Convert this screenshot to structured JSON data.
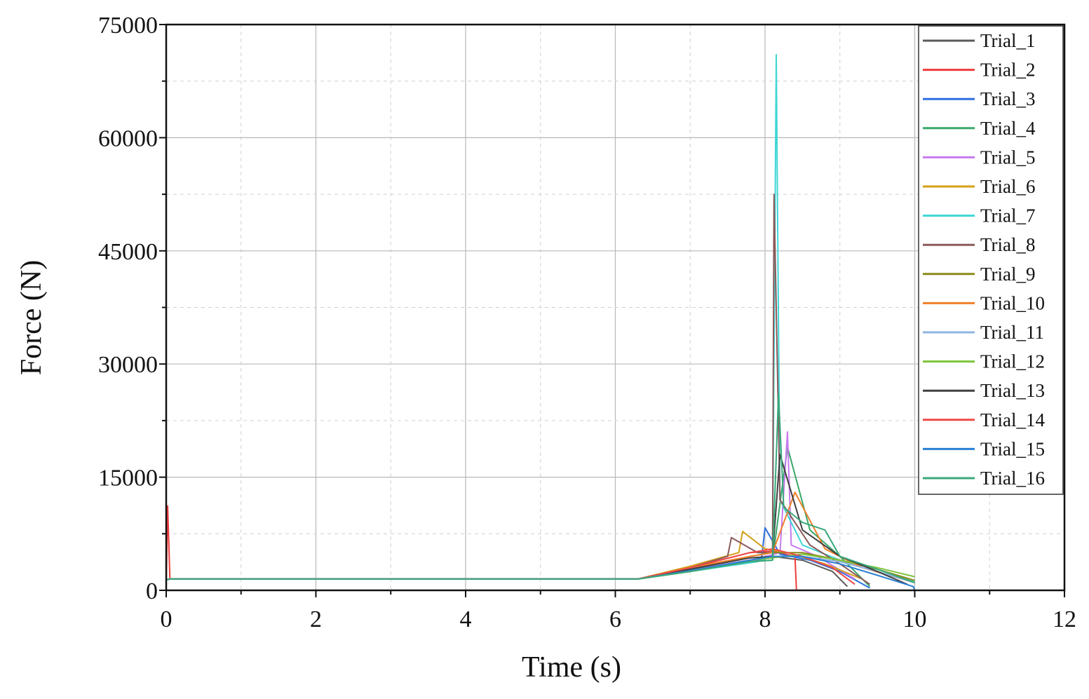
{
  "chart_data": {
    "type": "line",
    "title": "",
    "xlabel": "Time (s)",
    "ylabel": "Force (N)",
    "xlim": [
      0,
      12
    ],
    "ylim": [
      0,
      75000
    ],
    "x_ticks": [
      "0",
      "2",
      "4",
      "6",
      "8",
      "10",
      "12"
    ],
    "y_ticks": [
      "0",
      "15000",
      "30000",
      "45000",
      "60000",
      "75000"
    ],
    "grid": true,
    "legend_position": "top-right",
    "series": [
      {
        "name": "Trial_1",
        "color": "#5a5a5a",
        "x": [
          0,
          0.05,
          2,
          4,
          6.3,
          7,
          7.8,
          8.1,
          8.5,
          8.9,
          9.1
        ],
        "y": [
          1400,
          1500,
          1500,
          1500,
          1500,
          2500,
          4000,
          4500,
          4000,
          2500,
          500
        ]
      },
      {
        "name": "Trial_2",
        "color": "#f03c3c",
        "x": [
          0,
          0.02,
          0.05,
          2,
          4,
          6.3,
          7,
          7.8,
          8.1,
          8.4,
          8.42
        ],
        "y": [
          500,
          11200,
          1500,
          1500,
          1500,
          1500,
          3000,
          5000,
          5200,
          4500,
          0
        ]
      },
      {
        "name": "Trial_3",
        "color": "#2e6fe0",
        "x": [
          0,
          0.05,
          2,
          4,
          6.3,
          7,
          7.95,
          8.0,
          8.2,
          8.6,
          9.0,
          9.4
        ],
        "y": [
          1400,
          1500,
          1500,
          1500,
          1500,
          2600,
          4000,
          8300,
          4800,
          4000,
          2500,
          300
        ]
      },
      {
        "name": "Trial_4",
        "color": "#3aa86a",
        "x": [
          0,
          0.05,
          2,
          4,
          6.3,
          7,
          7.8,
          8.1,
          8.3,
          8.6,
          9.0,
          9.4
        ],
        "y": [
          1400,
          1500,
          1500,
          1500,
          1500,
          2500,
          3800,
          4000,
          19000,
          8000,
          4500,
          500
        ]
      },
      {
        "name": "Trial_5",
        "color": "#c77bef",
        "x": [
          0,
          0.05,
          2,
          4,
          6.3,
          7,
          7.9,
          8.2,
          8.3,
          8.35,
          8.7,
          9.2
        ],
        "y": [
          1400,
          1500,
          1500,
          1500,
          1500,
          2700,
          4200,
          5000,
          21000,
          6000,
          4500,
          1500
        ]
      },
      {
        "name": "Trial_6",
        "color": "#d4a017",
        "x": [
          0,
          0.05,
          2,
          4,
          6.3,
          7,
          7.65,
          7.7,
          8.0,
          8.3,
          8.8,
          9.3
        ],
        "y": [
          1400,
          1500,
          1500,
          1500,
          1500,
          3200,
          5000,
          7800,
          5500,
          5000,
          3500,
          1500
        ]
      },
      {
        "name": "Trial_7",
        "color": "#3fd6d6",
        "x": [
          0,
          0.05,
          2,
          4,
          6.3,
          7,
          7.9,
          8.1,
          8.15,
          8.2,
          8.5,
          9.0,
          9.5,
          10.0
        ],
        "y": [
          1400,
          1500,
          1500,
          1500,
          1500,
          2500,
          3800,
          4500,
          71000,
          12000,
          6000,
          4000,
          2800,
          1200
        ]
      },
      {
        "name": "Trial_8",
        "color": "#8b5a5a",
        "x": [
          0,
          0.05,
          2,
          4,
          6.3,
          7,
          7.5,
          7.55,
          7.9,
          8.1,
          8.12,
          8.2,
          8.6,
          9.0,
          9.4
        ],
        "y": [
          1400,
          1500,
          1500,
          1500,
          1500,
          3000,
          4500,
          7000,
          5000,
          5000,
          52500,
          12000,
          6000,
          3500,
          800
        ]
      },
      {
        "name": "Trial_9",
        "color": "#8a8a1a",
        "x": [
          0,
          0.05,
          2,
          4,
          6.3,
          7,
          7.8,
          8.1,
          8.5,
          9.0,
          9.5,
          10.0
        ],
        "y": [
          1400,
          1500,
          1500,
          1500,
          1500,
          2800,
          4500,
          5000,
          5000,
          4000,
          2800,
          1300
        ]
      },
      {
        "name": "Trial_10",
        "color": "#f07f2a",
        "x": [
          0,
          0.05,
          2,
          4,
          6.3,
          7,
          7.8,
          8.1,
          8.4,
          8.8,
          9.3,
          10.0
        ],
        "y": [
          1400,
          1500,
          1500,
          1500,
          1500,
          3000,
          4500,
          5000,
          13000,
          5500,
          3000,
          1000
        ]
      },
      {
        "name": "Trial_11",
        "color": "#8fb4e0",
        "x": [
          0,
          0.05,
          2,
          4,
          6.3,
          7,
          7.8,
          8.1,
          8.5,
          9.0,
          9.5,
          10.0
        ],
        "y": [
          1400,
          1500,
          1500,
          1500,
          1500,
          2600,
          4000,
          4500,
          4500,
          3800,
          2500,
          1000
        ]
      },
      {
        "name": "Trial_12",
        "color": "#7cc43a",
        "x": [
          0,
          0.05,
          2,
          4,
          6.3,
          7,
          7.8,
          8.1,
          8.5,
          9.0,
          9.5,
          10.0
        ],
        "y": [
          1400,
          1500,
          1500,
          1500,
          1500,
          2500,
          4000,
          4300,
          4800,
          4000,
          3000,
          1800
        ]
      },
      {
        "name": "Trial_13",
        "color": "#404040",
        "x": [
          0,
          0.05,
          2,
          4,
          6.3,
          7,
          7.8,
          8.1,
          8.2,
          8.5,
          9.0,
          9.5,
          9.9
        ],
        "y": [
          1400,
          1500,
          1500,
          1500,
          1500,
          2800,
          4300,
          4500,
          18000,
          8000,
          4500,
          2500,
          800
        ]
      },
      {
        "name": "Trial_14",
        "color": "#f04848",
        "x": [
          0,
          0.05,
          2,
          4,
          6.3,
          7,
          7.8,
          8.1,
          8.5,
          8.9,
          9.2
        ],
        "y": [
          1400,
          1500,
          1500,
          1500,
          1500,
          3000,
          5000,
          5500,
          4500,
          3000,
          800
        ]
      },
      {
        "name": "Trial_15",
        "color": "#2a7fd4",
        "x": [
          0,
          0.05,
          2,
          4,
          6.3,
          7,
          7.8,
          8.1,
          8.5,
          9.0,
          9.5,
          9.98,
          10.0
        ],
        "y": [
          1400,
          1500,
          1500,
          1500,
          1500,
          2600,
          4000,
          4500,
          4500,
          3500,
          2000,
          500,
          0
        ]
      },
      {
        "name": "Trial_16",
        "color": "#3aa87a",
        "x": [
          0,
          0.05,
          2,
          4,
          6.3,
          7,
          7.8,
          8.1,
          8.18,
          8.25,
          8.5,
          8.8,
          9.0,
          9.5,
          10.0
        ],
        "y": [
          1400,
          1500,
          1500,
          1500,
          1500,
          2500,
          3800,
          4000,
          26000,
          11000,
          9000,
          8000,
          4500,
          2800,
          1000
        ]
      }
    ]
  }
}
